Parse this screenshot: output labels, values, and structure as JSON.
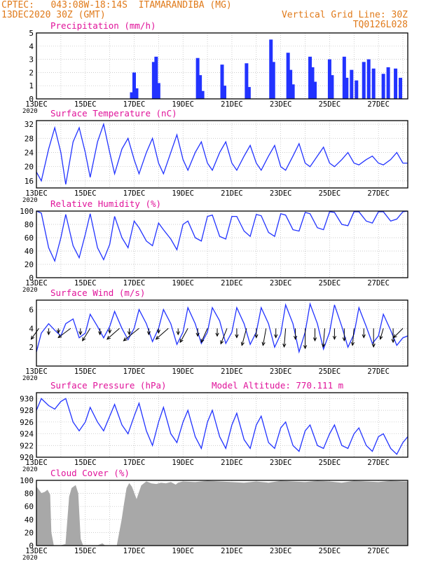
{
  "header": {
    "line1_left": "CPTEC:   043:08W-18:14S  ITAMARANDIBA (MG)",
    "line2_left": "13DEC2020 30Z (GMT)",
    "line1_right": "Vertical Grid Line: 30Z",
    "line2_right": "TQ0126L028"
  },
  "x_axis": {
    "ticks": [
      "13DEC",
      "15DEC",
      "17DEC",
      "19DEC",
      "21DEC",
      "23DEC",
      "25DEC",
      "27DEC"
    ],
    "year_label": "2020",
    "day_range": [
      13,
      28.2
    ]
  },
  "panels": {
    "precip": {
      "title": "Precipitation (mm/h)"
    },
    "temp": {
      "title": "Surface Temperature (nC)"
    },
    "rh": {
      "title": "Relative Humidity (%)"
    },
    "wind": {
      "title": "Surface Wind (m/s)"
    },
    "pres": {
      "title": "Surface Pressure (hPa)",
      "extra": "Model Altitude: 770.111 m"
    },
    "cloud": {
      "title": "Cloud Cover (%)"
    }
  },
  "colors": {
    "series": "#2233ff",
    "title": "#e0139a",
    "header": "#e07a1a",
    "cloud": "#a8a8a8",
    "grid": "#bbbbbb"
  },
  "chart_data": [
    {
      "type": "bar",
      "title": "Precipitation (mm/h)",
      "ylim": [
        0,
        5
      ],
      "yticks": [
        0,
        1,
        2,
        3,
        4,
        5
      ],
      "x": [
        16.9,
        17.0,
        17.1,
        17.8,
        17.9,
        18.0,
        19.6,
        19.7,
        19.8,
        20.6,
        20.7,
        21.6,
        21.7,
        22.6,
        22.7,
        23.3,
        23.4,
        23.5,
        24.2,
        24.3,
        24.4,
        25.0,
        25.1,
        25.6,
        25.7,
        25.9,
        26.1,
        26.4,
        26.6,
        26.8,
        27.2,
        27.4,
        27.7,
        27.9
      ],
      "values": [
        0.5,
        2.0,
        0.8,
        2.8,
        3.2,
        1.2,
        3.1,
        1.8,
        0.6,
        2.6,
        1.0,
        2.7,
        0.9,
        4.5,
        2.8,
        3.5,
        2.2,
        1.1,
        3.2,
        2.4,
        1.3,
        3.0,
        1.8,
        3.2,
        1.6,
        2.2,
        1.4,
        2.8,
        3.0,
        2.3,
        1.9,
        2.4,
        2.3,
        1.6
      ]
    },
    {
      "type": "line",
      "title": "Surface Temperature (nC)",
      "ylim": [
        14,
        33
      ],
      "yticks": [
        16,
        20,
        24,
        28,
        32
      ],
      "x": [
        13.0,
        13.2,
        13.5,
        13.75,
        14.0,
        14.2,
        14.5,
        14.75,
        15.0,
        15.2,
        15.5,
        15.75,
        16.0,
        16.2,
        16.5,
        16.75,
        17.0,
        17.2,
        17.5,
        17.75,
        18.0,
        18.2,
        18.5,
        18.75,
        19.0,
        19.2,
        19.5,
        19.75,
        20.0,
        20.2,
        20.5,
        20.75,
        21.0,
        21.2,
        21.5,
        21.75,
        22.0,
        22.2,
        22.5,
        22.75,
        23.0,
        23.2,
        23.5,
        23.75,
        24.0,
        24.2,
        24.5,
        24.75,
        25.0,
        25.2,
        25.5,
        25.75,
        26.0,
        26.2,
        26.5,
        26.75,
        27.0,
        27.2,
        27.5,
        27.75,
        28.0,
        28.2
      ],
      "values": [
        18.5,
        16.0,
        25.0,
        31.0,
        24.0,
        15.0,
        27.0,
        31.0,
        24.0,
        17.0,
        27.0,
        32.0,
        24.0,
        18.0,
        25.0,
        28.0,
        22.0,
        18.0,
        24.0,
        28.0,
        21.0,
        18.0,
        24.0,
        29.0,
        22.0,
        19.0,
        24.0,
        27.0,
        21.0,
        19.0,
        24.0,
        27.0,
        21.0,
        19.0,
        23.0,
        26.0,
        21.0,
        19.0,
        23.0,
        26.0,
        20.0,
        19.0,
        23.0,
        26.5,
        21.0,
        20.0,
        23.0,
        25.5,
        21.0,
        20.0,
        22.0,
        24.0,
        21.0,
        20.5,
        22.0,
        23.0,
        21.0,
        20.5,
        22.0,
        24.0,
        21.0,
        21.0
      ]
    },
    {
      "type": "line",
      "title": "Relative Humidity (%)",
      "ylim": [
        0,
        100
      ],
      "yticks": [
        0,
        20,
        40,
        60,
        80,
        100
      ],
      "x": [
        13.0,
        13.2,
        13.5,
        13.75,
        14.0,
        14.2,
        14.5,
        14.75,
        15.0,
        15.2,
        15.5,
        15.75,
        16.0,
        16.2,
        16.5,
        16.75,
        17.0,
        17.2,
        17.5,
        17.75,
        18.0,
        18.2,
        18.5,
        18.75,
        19.0,
        19.2,
        19.5,
        19.75,
        20.0,
        20.2,
        20.5,
        20.75,
        21.0,
        21.2,
        21.5,
        21.75,
        22.0,
        22.2,
        22.5,
        22.75,
        23.0,
        23.2,
        23.5,
        23.75,
        24.0,
        24.2,
        24.5,
        24.75,
        25.0,
        25.2,
        25.5,
        25.75,
        26.0,
        26.2,
        26.5,
        26.75,
        27.0,
        27.2,
        27.5,
        27.75,
        28.0,
        28.2
      ],
      "values": [
        100,
        97,
        45,
        25,
        60,
        95,
        48,
        30,
        65,
        96,
        45,
        27,
        50,
        92,
        60,
        45,
        85,
        75,
        55,
        48,
        82,
        72,
        58,
        42,
        80,
        85,
        60,
        55,
        92,
        94,
        62,
        58,
        92,
        92,
        70,
        62,
        95,
        93,
        68,
        62,
        96,
        94,
        72,
        70,
        98,
        96,
        75,
        72,
        99,
        98,
        80,
        78,
        99,
        99,
        85,
        82,
        99,
        99,
        85,
        88,
        99,
        100
      ]
    },
    {
      "type": "line",
      "title": "Surface Wind (m/s)",
      "ylim": [
        0,
        7
      ],
      "yticks": [
        2,
        4,
        6
      ],
      "x": [
        13.0,
        13.2,
        13.5,
        13.75,
        14.0,
        14.2,
        14.5,
        14.75,
        15.0,
        15.2,
        15.5,
        15.75,
        16.0,
        16.2,
        16.5,
        16.75,
        17.0,
        17.2,
        17.5,
        17.75,
        18.0,
        18.2,
        18.5,
        18.75,
        19.0,
        19.2,
        19.5,
        19.75,
        20.0,
        20.2,
        20.5,
        20.75,
        21.0,
        21.2,
        21.5,
        21.75,
        22.0,
        22.2,
        22.5,
        22.75,
        23.0,
        23.2,
        23.5,
        23.75,
        24.0,
        24.2,
        24.5,
        24.75,
        25.0,
        25.2,
        25.5,
        25.75,
        26.0,
        26.2,
        26.5,
        26.75,
        27.0,
        27.2,
        27.5,
        27.75,
        28.0,
        28.2
      ],
      "values": [
        1.5,
        3.5,
        4.5,
        3.8,
        3.2,
        4.5,
        5.0,
        3.0,
        3.5,
        5.5,
        4.2,
        3.0,
        4.2,
        5.8,
        4.0,
        2.8,
        4.0,
        6.0,
        4.5,
        2.6,
        4.0,
        6.0,
        4.5,
        2.3,
        3.6,
        6.2,
        4.5,
        2.4,
        3.6,
        6.2,
        4.8,
        2.4,
        3.6,
        6.2,
        4.5,
        2.3,
        3.6,
        6.2,
        4.5,
        2.0,
        3.4,
        6.5,
        4.5,
        1.5,
        3.6,
        6.6,
        4.5,
        1.8,
        3.6,
        6.5,
        4.2,
        2.0,
        3.4,
        6.2,
        4.2,
        2.4,
        3.2,
        5.5,
        3.8,
        2.2,
        3.0,
        3.2
      ],
      "vectors_x": [
        13.1,
        13.5,
        13.9,
        14.4,
        14.8,
        15.2,
        15.6,
        16.0,
        16.4,
        16.8,
        17.2,
        17.6,
        18.0,
        18.4,
        18.8,
        19.2,
        19.6,
        20.0,
        20.4,
        20.8,
        21.2,
        21.6,
        22.0,
        22.4,
        22.8,
        23.2,
        23.6,
        24.0,
        24.4,
        24.8,
        25.2,
        25.6,
        26.0,
        26.4,
        26.8,
        27.2,
        27.6,
        28.0
      ],
      "vectors_u": [
        -0.5,
        0.0,
        0.0,
        -0.8,
        0.0,
        -0.5,
        0.0,
        0.0,
        -0.8,
        0.0,
        -1.0,
        0.0,
        0.0,
        -0.8,
        0.0,
        -0.5,
        0.0,
        -0.4,
        0.0,
        -0.4,
        0.0,
        -0.3,
        0.0,
        -0.2,
        0.0,
        -0.1,
        0.0,
        0.0,
        0.0,
        -0.1,
        0.0,
        0.0,
        -0.1,
        0.0,
        0.0,
        -0.2,
        0.0,
        -0.6
      ],
      "vectors_v": [
        -0.7,
        -0.4,
        -0.3,
        -0.6,
        -0.4,
        -0.8,
        -0.4,
        -0.3,
        -0.7,
        -0.4,
        -0.8,
        -0.4,
        -0.3,
        -0.7,
        -0.4,
        -0.9,
        -0.5,
        -0.9,
        -0.5,
        -1.0,
        -0.6,
        -1.1,
        -0.6,
        -1.1,
        -0.6,
        -1.2,
        -0.7,
        -1.3,
        -0.8,
        -1.2,
        -0.7,
        -0.8,
        -1.1,
        -0.6,
        -1.2,
        -0.7,
        -0.9,
        -0.6
      ]
    },
    {
      "type": "line",
      "title": "Surface Pressure (hPa)",
      "ylim": [
        920,
        931
      ],
      "yticks": [
        920,
        922,
        924,
        926,
        928,
        930
      ],
      "x": [
        13.0,
        13.2,
        13.5,
        13.75,
        14.0,
        14.2,
        14.5,
        14.75,
        15.0,
        15.2,
        15.5,
        15.75,
        16.0,
        16.2,
        16.5,
        16.75,
        17.0,
        17.2,
        17.5,
        17.75,
        18.0,
        18.2,
        18.5,
        18.75,
        19.0,
        19.2,
        19.5,
        19.75,
        20.0,
        20.2,
        20.5,
        20.75,
        21.0,
        21.2,
        21.5,
        21.75,
        22.0,
        22.2,
        22.5,
        22.75,
        23.0,
        23.2,
        23.5,
        23.75,
        24.0,
        24.2,
        24.5,
        24.75,
        25.0,
        25.2,
        25.5,
        25.75,
        26.0,
        26.2,
        26.5,
        26.75,
        27.0,
        27.2,
        27.5,
        27.75,
        28.0,
        28.2
      ],
      "values": [
        928.0,
        930.0,
        928.8,
        928.2,
        929.5,
        930.0,
        926.0,
        924.5,
        926.0,
        928.5,
        926.0,
        924.5,
        927.0,
        929.0,
        925.5,
        924.0,
        927.0,
        929.2,
        924.5,
        922.0,
        926.0,
        928.5,
        924.0,
        922.5,
        926.0,
        928.0,
        923.5,
        921.5,
        926.0,
        928.0,
        923.5,
        921.5,
        925.5,
        927.5,
        923.0,
        921.5,
        925.5,
        927.0,
        922.5,
        921.5,
        925.0,
        926.0,
        922.0,
        921.0,
        924.5,
        925.5,
        922.0,
        921.5,
        924.0,
        925.5,
        922.0,
        921.5,
        924.0,
        925.0,
        922.0,
        921.0,
        923.5,
        924.0,
        921.5,
        920.5,
        922.5,
        923.5
      ]
    },
    {
      "type": "area",
      "title": "Cloud Cover (%)",
      "ylim": [
        0,
        100
      ],
      "yticks": [
        0,
        20,
        40,
        60,
        80,
        100
      ],
      "x": [
        13.0,
        13.1,
        13.2,
        13.35,
        13.45,
        13.55,
        13.6,
        13.7,
        14.0,
        14.2,
        14.35,
        14.45,
        14.6,
        14.7,
        14.8,
        14.9,
        15.0,
        15.1,
        15.3,
        15.5,
        15.7,
        15.8,
        15.9,
        16.1,
        16.3,
        16.5,
        16.6,
        16.7,
        16.8,
        16.9,
        17.1,
        17.3,
        17.5,
        17.7,
        17.9,
        18.1,
        18.3,
        18.5,
        18.7,
        18.8,
        19.0,
        19.5,
        20.0,
        20.5,
        21.0,
        21.5,
        22.0,
        22.5,
        23.0,
        23.5,
        24.0,
        24.5,
        25.0,
        25.5,
        26.0,
        26.5,
        27.0,
        27.5,
        28.0,
        28.2
      ],
      "values": [
        90,
        85,
        80,
        82,
        85,
        78,
        20,
        0,
        0,
        2,
        75,
        88,
        92,
        80,
        10,
        0,
        0,
        0,
        0,
        0,
        3,
        0,
        0,
        0,
        0,
        40,
        65,
        88,
        95,
        90,
        70,
        92,
        98,
        95,
        94,
        96,
        95,
        97,
        93,
        96,
        98,
        97,
        99,
        98,
        97,
        96,
        98,
        96,
        99,
        98,
        97,
        99,
        98,
        96,
        99,
        98,
        97,
        99,
        98,
        98
      ]
    }
  ]
}
